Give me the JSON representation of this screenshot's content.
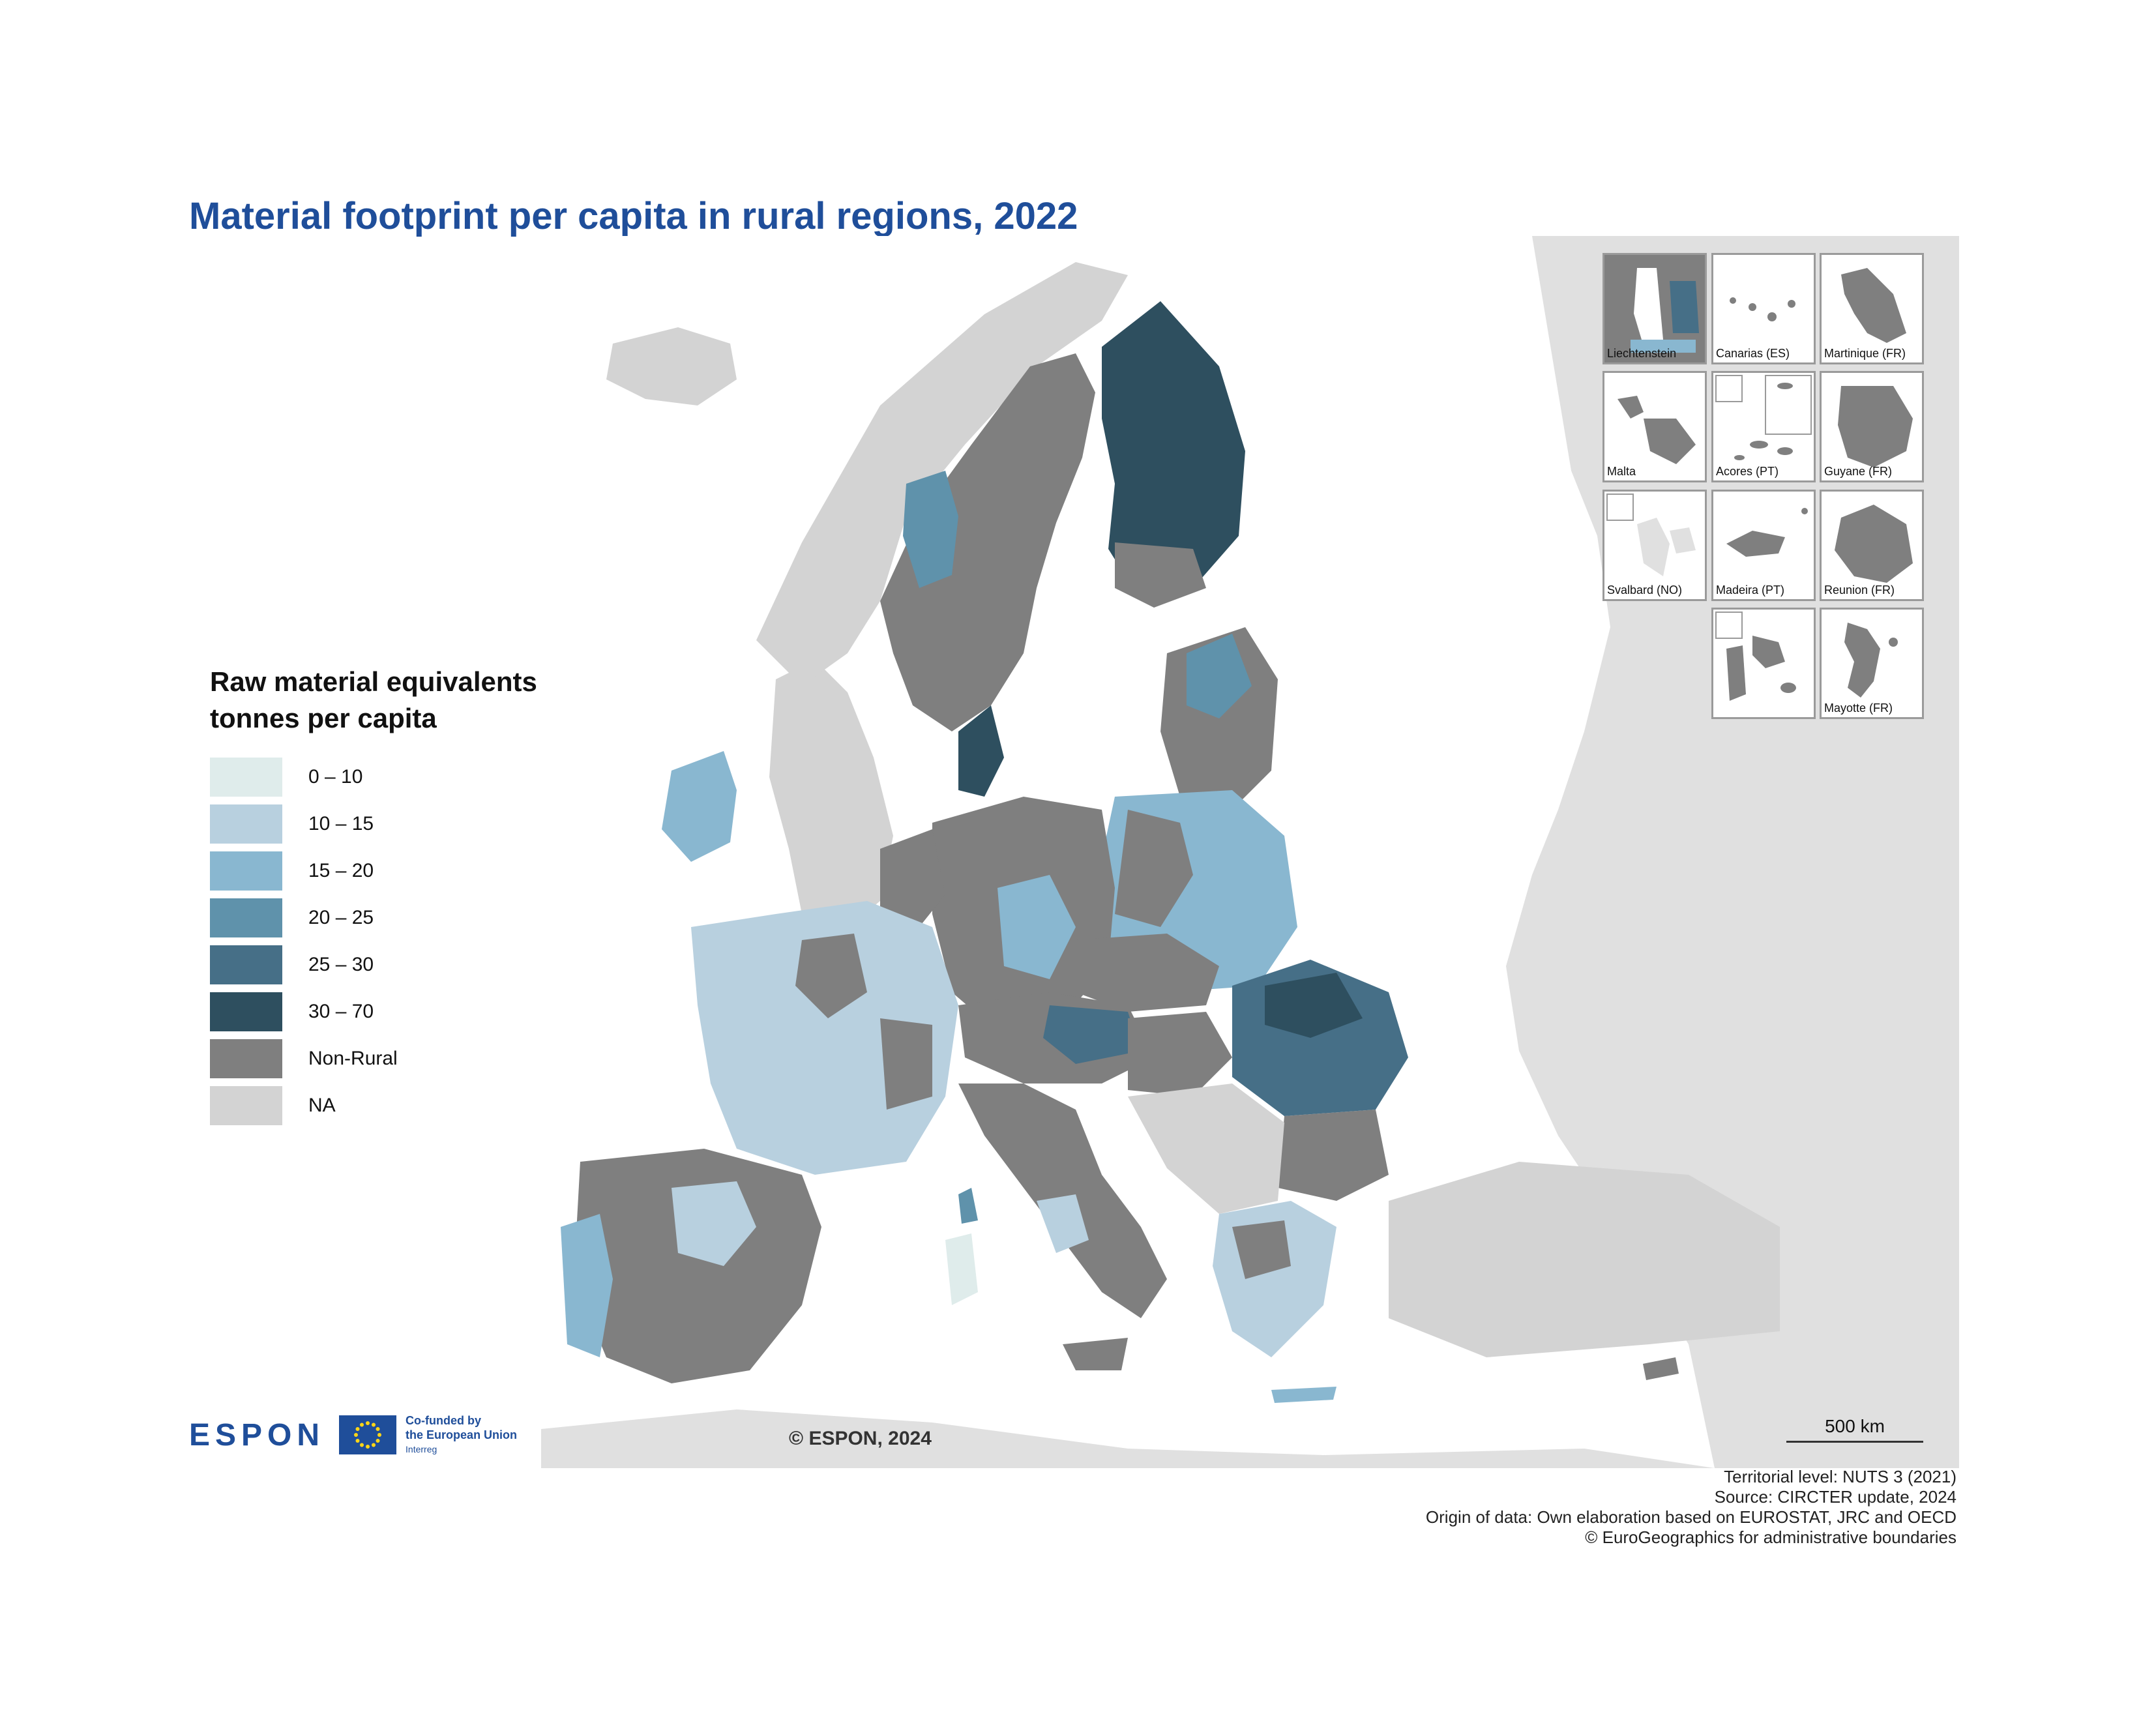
{
  "title": "Material footprint per capita in rural regions, 2022",
  "legend": {
    "title_line1": "Raw material equivalents",
    "title_line2": "tonnes per capita",
    "classes": [
      {
        "label": "0 – 10",
        "color": "#dfeceb"
      },
      {
        "label": "10 – 15",
        "color": "#b8d0df"
      },
      {
        "label": "15 – 20",
        "color": "#89b7d0"
      },
      {
        "label": "20 – 25",
        "color": "#5f92ab"
      },
      {
        "label": "25 – 30",
        "color": "#466f87"
      },
      {
        "label": "30 – 70",
        "color": "#2e4f5f"
      },
      {
        "label": "Non-Rural",
        "color": "#7f7f7f"
      },
      {
        "label": "NA",
        "color": "#d3d3d3"
      }
    ]
  },
  "insets": [
    {
      "label": "Liechtenstein"
    },
    {
      "label": "Canarias (ES)"
    },
    {
      "label": "Martinique (FR)"
    },
    {
      "label": "Malta"
    },
    {
      "label": "Acores (PT)"
    },
    {
      "label": "Guyane (FR)"
    },
    {
      "label": "Svalbard (NO)"
    },
    {
      "label": "Madeira (PT)"
    },
    {
      "label": "Reunion (FR)"
    },
    {
      "label": "Mayotte (FR)"
    }
  ],
  "logo": {
    "espon": "ESPON",
    "cofund_line1": "Co-funded by",
    "cofund_line2": "the European Union",
    "cofund_line3": "Interreg"
  },
  "copyright": "© ESPON, 2024",
  "scale": "500 km",
  "notes": [
    "Territorial level: NUTS 3 (2021)",
    "Source: CIRCTER update, 2024",
    "Origin of data: Own elaboration based on EUROSTAT, JRC and OECD",
    "© EuroGeographics for administrative boundaries"
  ],
  "colors": {
    "sea": "#ffffff",
    "na_land": "#d3d3d3",
    "outside_land": "#e0e0e0",
    "title": "#1f4e9a"
  }
}
